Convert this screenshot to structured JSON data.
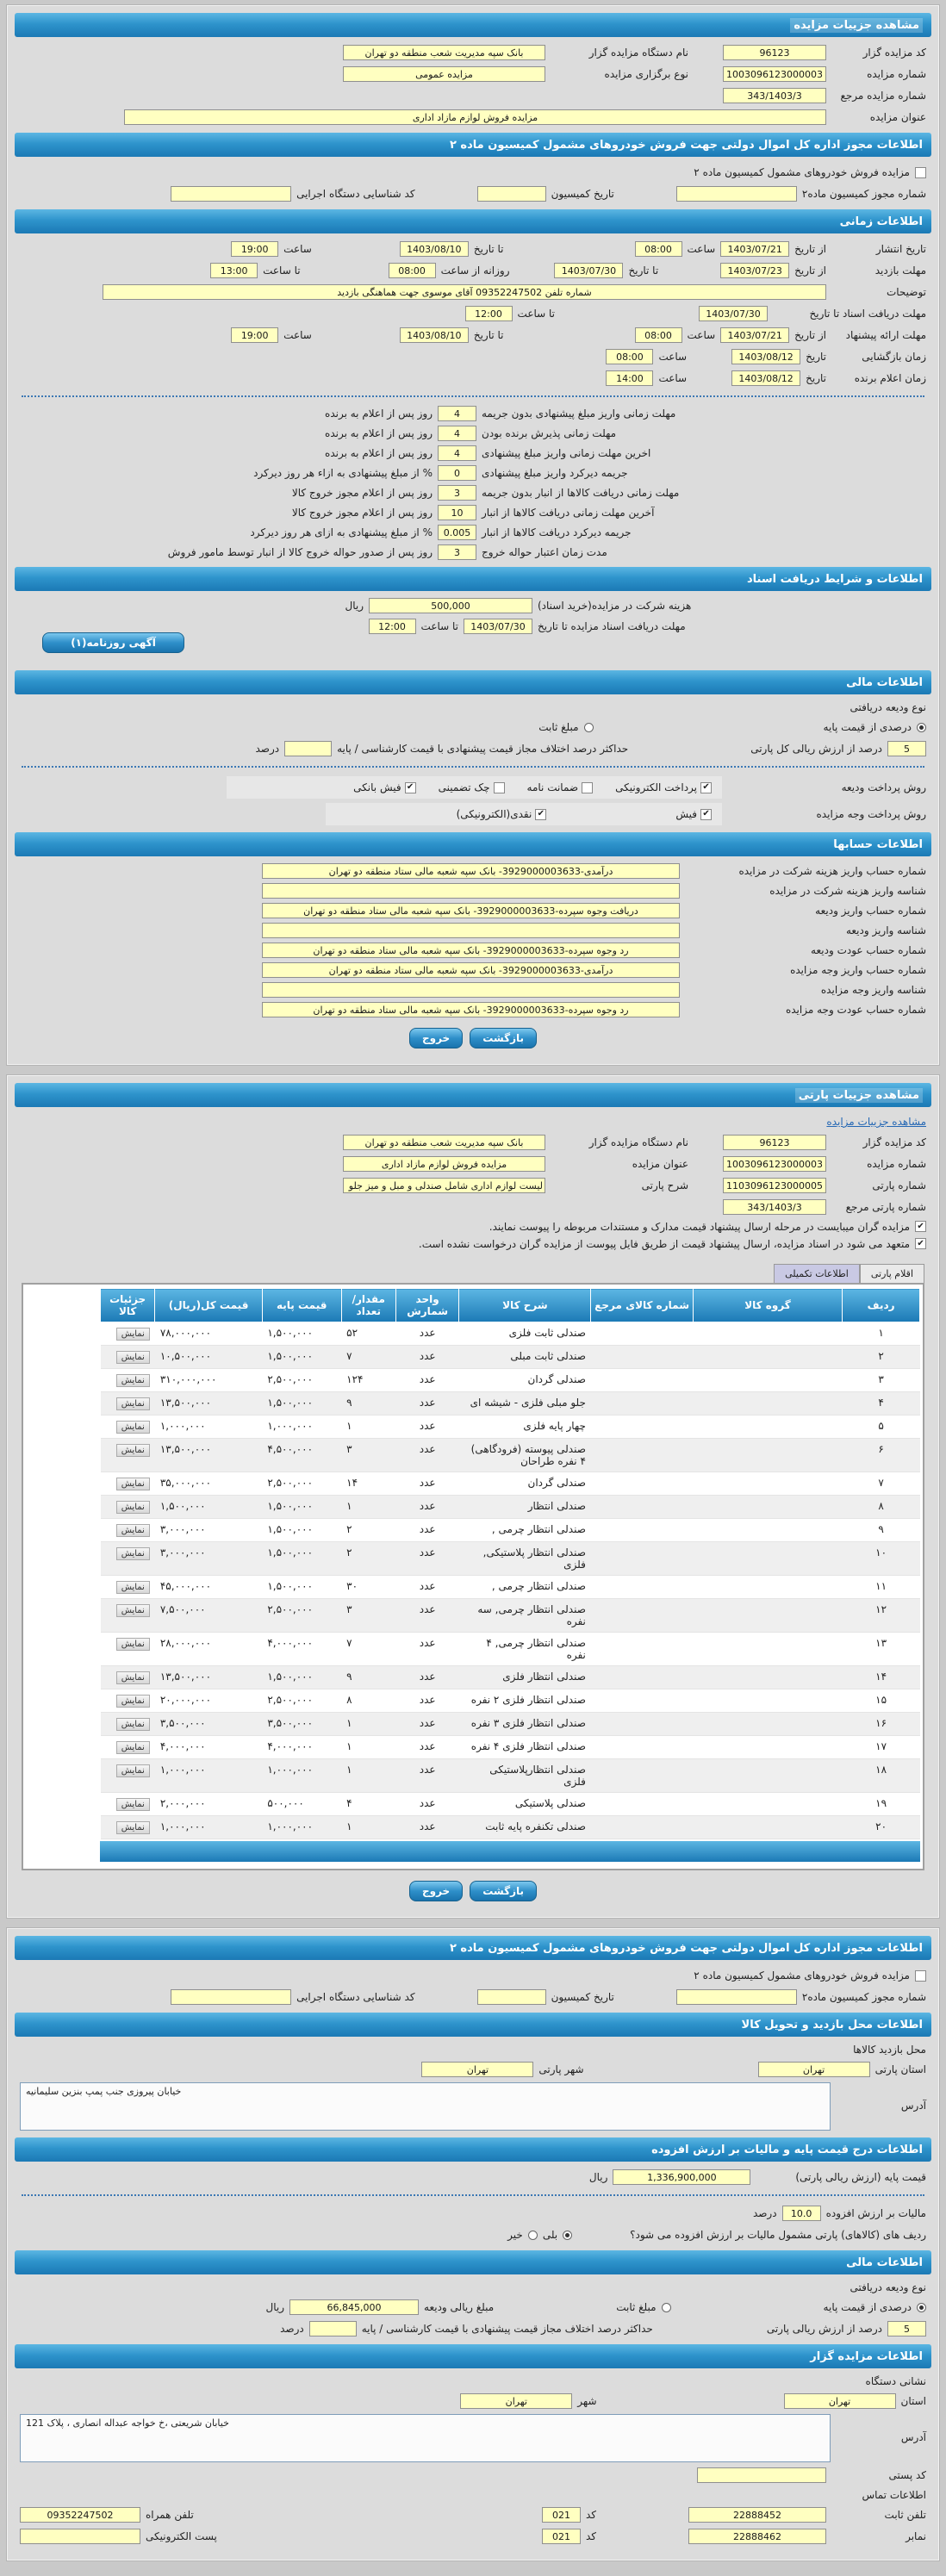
{
  "glyphs": {
    "check": "✔"
  },
  "colors": {
    "header_blue_top": "#5cb6e3",
    "header_blue_bottom": "#1b79b5",
    "field_yellow": "#ffffc1",
    "tab_lavender": "#c9c9e4",
    "panel_gray": "#dcdcdc"
  },
  "buttons": {
    "back": "بازگشت",
    "exit": "خروج",
    "newspaper": "آگهی روزنامه(۱)",
    "show": "نمایش"
  },
  "lbl": {
    "az_tarikh": "از تاریخ",
    "ta_tarikh": "تا تاریخ",
    "saat": "ساعت",
    "ta_saat": "تا ساعت",
    "rozane": "روزانه از ساعت",
    "tarikh": "تاریخ",
    "rial": "ریال",
    "darsad": "درصد",
    "kod": "کد"
  },
  "auction": {
    "title": "مشاهده جزییات مزایده",
    "bidder_code_label": "کد مزایده گزار",
    "bidder_code": "96123",
    "org_label": "نام دستگاه مزایده گزار",
    "org": "بانک سپه مدیریت شعب منطقه دو تهران",
    "no_label": "شماره مزایده",
    "no": "1003096123000003",
    "type_label": "نوع برگزاری مزایده",
    "type": "مزایده عمومی",
    "ref_label": "شماره مزایده مرجع",
    "ref": "343/1403/3",
    "title_label": "عنوان مزایده",
    "title_value": "مزایده فروش لوازم مازاد اداری"
  },
  "permit": {
    "title": "اطلاعات مجوز اداره کل اموال دولتی جهت فروش خودروهای مشمول کمیسیون ماده ۲",
    "checkbox": "مزایده فروش خودروهای مشمول کمیسیون ماده ۲",
    "no_label": "شماره مجوز کمیسیون ماده۲",
    "date_label": "تاریخ کمیسیون",
    "exec_label": "کد شناسایی دستگاه اجرایی"
  },
  "timing": {
    "title": "اطلاعات زمانی",
    "publish_label": "تاریخ انتشار",
    "publish_from": "1403/07/21",
    "publish_from_time": "08:00",
    "publish_to": "1403/08/10",
    "publish_to_time": "19:00",
    "visit_label": "مهلت بازدید",
    "visit_from": "1403/07/23",
    "visit_to": "1403/07/30",
    "visit_daily_from": "08:00",
    "visit_daily_to": "13:00",
    "notes_label": "توضیحات",
    "notes": "شماره تلفن 09352247502 آقای موسوی جهت هماهنگی بازدید",
    "docs_label": "مهلت دریافت اسناد تا تاریخ",
    "docs_date": "1403/07/30",
    "docs_time": "12:00",
    "offer_label": "مهلت ارائه پیشنهاد",
    "offer_from": "1403/07/21",
    "offer_from_time": "08:00",
    "offer_to": "1403/08/10",
    "offer_to_time": "19:00",
    "open_label": "زمان بازگشایی",
    "open_date": "1403/08/12",
    "open_time": "08:00",
    "winner_label": "زمان اعلام برنده",
    "winner_date": "1403/08/12",
    "winner_time": "14:00"
  },
  "penalties": {
    "rows": [
      {
        "label": "مهلت زمانی واریز مبلغ پیشنهادی بدون جریمه",
        "value": "4",
        "suffix": "روز پس از اعلام به برنده"
      },
      {
        "label": "مهلت زمانی پذیرش برنده بودن",
        "value": "4",
        "suffix": "روز پس از اعلام به برنده"
      },
      {
        "label": "اخرین مهلت زمانی واریز مبلغ پیشنهادی",
        "value": "4",
        "suffix": "روز پس از اعلام به برنده"
      },
      {
        "label": "جریمه دیرکرد واریز مبلغ پیشنهادی",
        "value": "0",
        "suffix": "% از مبلغ پیشنهادی به ازاء هر روز دیرکرد"
      },
      {
        "label": "مهلت زمانی دریافت کالاها از انبار بدون جریمه",
        "value": "3",
        "suffix": "روز پس از اعلام مجوز خروج کالا"
      },
      {
        "label": "آخرین مهلت زمانی دریافت کالاها از انبار",
        "value": "10",
        "suffix": "روز پس از اعلام مجوز خروج کالا"
      },
      {
        "label": "جریمه دیرکرد دریافت کالاها از انبار",
        "value": "0.005",
        "suffix": "% از مبلغ پیشنهادی به ازای هر روز دیرکرد"
      },
      {
        "label": "مدت زمان اعتبار حواله خروج",
        "value": "3",
        "suffix": "روز پس از صدور حواله خروج کالا از انبار توسط مامور فروش"
      }
    ]
  },
  "docs": {
    "title": "اطلاعات و شرایط دریافت اسناد",
    "fee_label": "هزینه شرکت در مزایده(خرید اسناد)",
    "fee": "500,000",
    "deadline_label": "مهلت دریافت اسناد مزایده تا تاریخ",
    "deadline_date": "1403/07/30",
    "deadline_time": "12:00"
  },
  "fin1": {
    "title": "اطلاعات مالی",
    "deposit_type": "نوع ودیعه دریافتی",
    "opt_percent": "درصدی از قیمت پایه",
    "opt_fixed": "مبلغ ثابت",
    "percent": "5",
    "percent_label": "درصد از ارزش ریالی کل پارتی",
    "maxdiff_label": "حداکثر درصد اختلاف مجاز قیمت پیشنهادی با قیمت کارشناسی / پایه",
    "dep_method_label": "روش پرداخت ودیعه",
    "dep_methods": [
      {
        "label": "پرداخت الکترونیکی",
        "checked": true
      },
      {
        "label": "ضمانت نامه",
        "checked": false
      },
      {
        "label": "چک تضمینی",
        "checked": false
      },
      {
        "label": "فیش بانکی",
        "checked": true
      }
    ],
    "pay_method_label": "روش پرداخت وجه مزایده",
    "pay_methods": [
      {
        "label": "فیش",
        "checked": true
      },
      {
        "label": "نقدی(الکترونیکی)",
        "checked": true
      }
    ]
  },
  "accounts": {
    "title": "اطلاعات حسابها",
    "rows": [
      {
        "label": "شماره حساب واریز هزینه شرکت در مزایده",
        "value": "درآمدی-3929000003633- بانک سپه شعبه مالی ستاد منطقه دو تهران"
      },
      {
        "label": "شناسه واریز هزینه شرکت در مزایده",
        "value": ""
      },
      {
        "label": "شماره حساب واریز ودیعه",
        "value": "دریافت وجوه سپرده-3929000003633- بانک سپه شعبه مالی ستاد منطقه دو تهران"
      },
      {
        "label": "شناسه واریز ودیعه",
        "value": ""
      },
      {
        "label": "شماره حساب عودت ودیعه",
        "value": "رد وجوه سپرده-3929000003633- بانک سپه شعبه مالی ستاد منطقه دو تهران"
      },
      {
        "label": "شماره حساب واریز وجه مزایده",
        "value": "درآمدی-3929000003633- بانک سپه شعبه مالی ستاد منطقه دو تهران"
      },
      {
        "label": "شناسه واریز وجه مزایده",
        "value": ""
      },
      {
        "label": "شماره حساب عودت وجه مزایده",
        "value": "رد وجوه سپرده-3929000003633- بانک سپه شعبه مالی ستاد منطقه دو تهران"
      }
    ]
  },
  "party": {
    "title": "مشاهده جزییات پارتی",
    "link": "مشاهده جزییات مزایده",
    "no_label": "شماره پارتی",
    "no": "1103096123000005",
    "desc_label": "شرح پارتی",
    "desc": "لیست لوازم اداری شامل صندلی و مبل و میز جلو مبلی",
    "ref_label": "شماره پارتی مرجع",
    "ref": "343/1403/3",
    "chk1": "مزایده گران میبایست در مرحله ارسال پیشنهاد قیمت مدارک و مستندات مربوطه را پیوست نمایند.",
    "chk2": "متعهد می شود در اسناد مزایده، ارسال پیشنهاد قیمت از طریق فایل پیوست از مزایده گران درخواست نشده است.",
    "tab_items": "اقلام پارتی",
    "tab_extra": "اطلاعات تکمیلی"
  },
  "items_table": {
    "headers": [
      "ردیف",
      "گروه کالا",
      "شماره کالای مرجع",
      "شرح کالا",
      "واحد شمارش",
      "مقدار/ تعداد",
      "قیمت پایه",
      "قیمت کل(ریال)",
      "جزئیات کالا"
    ],
    "rows": [
      {
        "no": "۱",
        "group": "",
        "ref": "",
        "desc": "صندلی ثابت فلزی",
        "unit": "عدد",
        "qty": "۵۲",
        "base": "۱,۵۰۰,۰۰۰",
        "total": "۷۸,۰۰۰,۰۰۰"
      },
      {
        "no": "۲",
        "group": "",
        "ref": "",
        "desc": "صندلی ثابت مبلی",
        "unit": "عدد",
        "qty": "۷",
        "base": "۱,۵۰۰,۰۰۰",
        "total": "۱۰,۵۰۰,۰۰۰"
      },
      {
        "no": "۳",
        "group": "",
        "ref": "",
        "desc": "صندلی گردان",
        "unit": "عدد",
        "qty": "۱۲۴",
        "base": "۲,۵۰۰,۰۰۰",
        "total": "۳۱۰,۰۰۰,۰۰۰"
      },
      {
        "no": "۴",
        "group": "",
        "ref": "",
        "desc": "جلو مبلی فلزی - شیشه ای",
        "unit": "عدد",
        "qty": "۹",
        "base": "۱,۵۰۰,۰۰۰",
        "total": "۱۳,۵۰۰,۰۰۰"
      },
      {
        "no": "۵",
        "group": "",
        "ref": "",
        "desc": "چهار پایه فلزی",
        "unit": "عدد",
        "qty": "۱",
        "base": "۱,۰۰۰,۰۰۰",
        "total": "۱,۰۰۰,۰۰۰"
      },
      {
        "no": "۶",
        "group": "",
        "ref": "",
        "desc": "صندلی پیوسته (فرودگاهی) ۴ نفره طراحان",
        "unit": "عدد",
        "qty": "۳",
        "base": "۴,۵۰۰,۰۰۰",
        "total": "۱۳,۵۰۰,۰۰۰"
      },
      {
        "no": "۷",
        "group": "",
        "ref": "",
        "desc": "صندلی گردان",
        "unit": "عدد",
        "qty": "۱۴",
        "base": "۲,۵۰۰,۰۰۰",
        "total": "۳۵,۰۰۰,۰۰۰"
      },
      {
        "no": "۸",
        "group": "",
        "ref": "",
        "desc": "صندلی انتظار",
        "unit": "عدد",
        "qty": "۱",
        "base": "۱,۵۰۰,۰۰۰",
        "total": "۱,۵۰۰,۰۰۰"
      },
      {
        "no": "۹",
        "group": "",
        "ref": "",
        "desc": "صندلی انتظار چرمی ,",
        "unit": "عدد",
        "qty": "۲",
        "base": "۱,۵۰۰,۰۰۰",
        "total": "۳,۰۰۰,۰۰۰"
      },
      {
        "no": "۱۰",
        "group": "",
        "ref": "",
        "desc": "صندلی انتظار پلاستیکی, فلزی",
        "unit": "عدد",
        "qty": "۲",
        "base": "۱,۵۰۰,۰۰۰",
        "total": "۳,۰۰۰,۰۰۰"
      },
      {
        "no": "۱۱",
        "group": "",
        "ref": "",
        "desc": "صندلی انتظار چرمی ,",
        "unit": "عدد",
        "qty": "۳۰",
        "base": "۱,۵۰۰,۰۰۰",
        "total": "۴۵,۰۰۰,۰۰۰"
      },
      {
        "no": "۱۲",
        "group": "",
        "ref": "",
        "desc": "صندلی انتظار چرمی, سه نفره",
        "unit": "عدد",
        "qty": "۳",
        "base": "۲,۵۰۰,۰۰۰",
        "total": "۷,۵۰۰,۰۰۰"
      },
      {
        "no": "۱۳",
        "group": "",
        "ref": "",
        "desc": "صندلی انتظار چرمی, ۴ نفره",
        "unit": "عدد",
        "qty": "۷",
        "base": "۴,۰۰۰,۰۰۰",
        "total": "۲۸,۰۰۰,۰۰۰"
      },
      {
        "no": "۱۴",
        "group": "",
        "ref": "",
        "desc": "صندلی انتظار فلزی",
        "unit": "عدد",
        "qty": "۹",
        "base": "۱,۵۰۰,۰۰۰",
        "total": "۱۳,۵۰۰,۰۰۰"
      },
      {
        "no": "۱۵",
        "group": "",
        "ref": "",
        "desc": "صندلی انتظار فلزی ۲ نفره",
        "unit": "عدد",
        "qty": "۸",
        "base": "۲,۵۰۰,۰۰۰",
        "total": "۲۰,۰۰۰,۰۰۰"
      },
      {
        "no": "۱۶",
        "group": "",
        "ref": "",
        "desc": "صندلی انتظار فلزی ۳ نفره",
        "unit": "عدد",
        "qty": "۱",
        "base": "۳,۵۰۰,۰۰۰",
        "total": "۳,۵۰۰,۰۰۰"
      },
      {
        "no": "۱۷",
        "group": "",
        "ref": "",
        "desc": "صندلی انتظار فلزی ۴ نفره",
        "unit": "عدد",
        "qty": "۱",
        "base": "۴,۰۰۰,۰۰۰",
        "total": "۴,۰۰۰,۰۰۰"
      },
      {
        "no": "۱۸",
        "group": "",
        "ref": "",
        "desc": "صندلی انتظارپلاستیکی فلزی",
        "unit": "عدد",
        "qty": "۱",
        "base": "۱,۰۰۰,۰۰۰",
        "total": "۱,۰۰۰,۰۰۰"
      },
      {
        "no": "۱۹",
        "group": "",
        "ref": "",
        "desc": "صندلی پلاستیکی",
        "unit": "عدد",
        "qty": "۴",
        "base": "۵۰۰,۰۰۰",
        "total": "۲,۰۰۰,۰۰۰"
      },
      {
        "no": "۲۰",
        "group": "",
        "ref": "",
        "desc": "صندلی تکنفره پایه ثابت",
        "unit": "عدد",
        "qty": "۱",
        "base": "۱,۰۰۰,۰۰۰",
        "total": "۱,۰۰۰,۰۰۰"
      }
    ]
  },
  "location": {
    "title": "اطلاعات محل بازدید و تحویل کالا",
    "visit_label": "محل بازدید کالاها",
    "province_label": "استان پارتی",
    "province": "تهران",
    "city_label": "شهر پارتی",
    "city": "تهران",
    "address_label": "آدرس",
    "address": "خیابان پیروزی جنب پمپ بنزین سلیمانیه"
  },
  "price_vat": {
    "title": "اطلاعات درج قیمت پایه و مالیات بر ارزش افزوده",
    "base_label": "قیمت پایه (ارزش ریالی پارتی)",
    "base": "1,336,900,000",
    "vat_label": "مالیات بر ارزش افزوده",
    "vat": "10.0",
    "question": "ردیف های (کالاهای) پارتی مشمول مالیات بر ارزش افزوده می شود؟",
    "yes": "بلی",
    "no": "خیر"
  },
  "fin2": {
    "title": "اطلاعات مالی",
    "deposit_type": "نوع ودیعه دریافتی",
    "opt_percent": "درصدی از قیمت پایه",
    "opt_fixed": "مبلغ ثابت",
    "amount_label": "مبلغ ریالی ودیعه",
    "amount": "66,845,000",
    "percent": "5",
    "percent_label": "درصد از ارزش ریالی پارتی",
    "maxdiff_label": "حداکثر درصد اختلاف مجاز قیمت پیشنهادی با قیمت کارشناسی / پایه"
  },
  "bidder": {
    "title": "اطلاعات مزایده گزار",
    "address_header": "نشانی دستگاه",
    "province_label": "استان",
    "province": "تهران",
    "city_label": "شهر",
    "city": "تهران",
    "address_label": "آدرس",
    "address": "خیابان شریعتی ،خ خواجه عبداله انصاری ، پلاک 121",
    "postal_label": "کد پستی",
    "postal": "",
    "contact_header": "اطلاعات تماس",
    "phone_label": "تلفن ثابت",
    "phone": "22888452",
    "phone_code": "021",
    "mobile_label": "تلفن همراه",
    "mobile": "09352247502",
    "fax_label": "نمابر",
    "fax": "22888462",
    "fax_code": "021",
    "email_label": "پست الکترونیکی",
    "email": ""
  }
}
